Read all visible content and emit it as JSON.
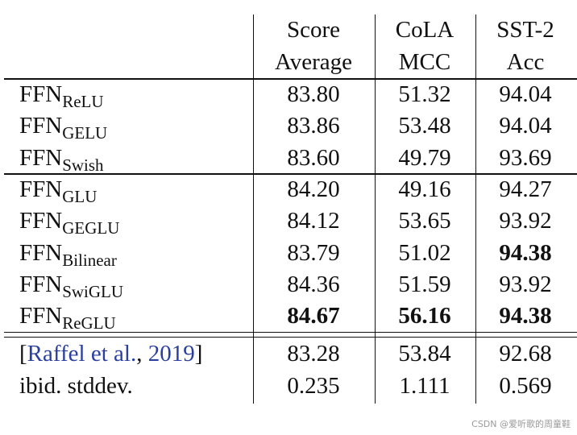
{
  "table": {
    "header": [
      [
        "Score",
        "Average"
      ],
      [
        "CoLA",
        "MCC"
      ],
      [
        "SST-2",
        "Acc"
      ]
    ],
    "groups": [
      {
        "rows": [
          {
            "label": "FFN",
            "sub": "ReLU",
            "cells": [
              "83.80",
              "51.32",
              "94.04"
            ],
            "bold": []
          },
          {
            "label": "FFN",
            "sub": "GELU",
            "cells": [
              "83.86",
              "53.48",
              "94.04"
            ],
            "bold": []
          },
          {
            "label": "FFN",
            "sub": "Swish",
            "cells": [
              "83.60",
              "49.79",
              "93.69"
            ],
            "bold": []
          }
        ]
      },
      {
        "rows": [
          {
            "label": "FFN",
            "sub": "GLU",
            "cells": [
              "84.20",
              "49.16",
              "94.27"
            ],
            "bold": []
          },
          {
            "label": "FFN",
            "sub": "GEGLU",
            "cells": [
              "84.12",
              "53.65",
              "93.92"
            ],
            "bold": []
          },
          {
            "label": "FFN",
            "sub": "Bilinear",
            "cells": [
              "83.79",
              "51.02",
              "94.38"
            ],
            "bold": [
              2
            ]
          },
          {
            "label": "FFN",
            "sub": "SwiGLU",
            "cells": [
              "84.36",
              "51.59",
              "93.92"
            ],
            "bold": []
          },
          {
            "label": "FFN",
            "sub": "ReGLU",
            "cells": [
              "84.67",
              "56.16",
              "94.38"
            ],
            "bold": [
              0,
              1,
              2
            ]
          }
        ]
      },
      {
        "rows": [
          {
            "label_parts": [
              {
                "text": "[",
                "link": false
              },
              {
                "text": "Raffel et al.",
                "link": true
              },
              {
                "text": ", ",
                "link": false
              },
              {
                "text": "2019",
                "link": true
              },
              {
                "text": "]",
                "link": false
              }
            ],
            "cells": [
              "83.28",
              "53.84",
              "92.68"
            ],
            "bold": []
          },
          {
            "label": "ibid. stddev.",
            "cells": [
              "0.235",
              "1.111",
              "0.569"
            ],
            "bold": []
          }
        ]
      }
    ]
  },
  "watermark": "CSDN @爱听歌的周童鞋"
}
